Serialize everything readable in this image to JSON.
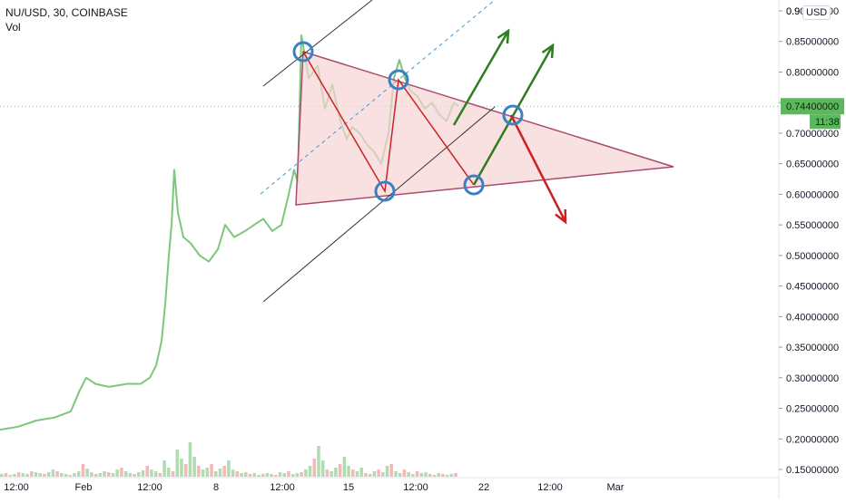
{
  "header": {
    "symbol": "NU/USD, 30, COINBASE",
    "indicator": "Vol",
    "currency": "USD"
  },
  "price_label": {
    "value": "0.74400000",
    "countdown": "11:38",
    "color": "#5cb85c"
  },
  "colors": {
    "price_line": "#7dc67d",
    "triangle_fill": "#f7d4d4",
    "triangle_stroke": "#a94c6e",
    "channel_line": "#333333",
    "dashed_line": "#3a9ad9",
    "zigzag": "#cc2222",
    "arrow_up": "#2e7d1e",
    "arrow_down": "#cc2222",
    "circle": "#3b7fc4",
    "vol_up": "#9fd29f",
    "vol_down": "#f2a5a5"
  },
  "chart_data": {
    "type": "line",
    "ylim": [
      0.14,
      0.92
    ],
    "y_ticks": [
      "0.15000000",
      "0.20000000",
      "0.25000000",
      "0.30000000",
      "0.35000000",
      "0.40000000",
      "0.45000000",
      "0.50000000",
      "0.55000000",
      "0.60000000",
      "0.65000000",
      "0.70000000",
      "0.75000000",
      "0.80000000",
      "0.85000000",
      "0.90000000"
    ],
    "y_tick_values": [
      0.15,
      0.2,
      0.25,
      0.3,
      0.35,
      0.4,
      0.45,
      0.5,
      0.55,
      0.6,
      0.65,
      0.7,
      0.75,
      0.8,
      0.85,
      0.9
    ],
    "y_top_label": "0.9",
    "x_ticks": [
      "12:00",
      "Feb",
      "12:00",
      "8",
      "12:00",
      "15",
      "12:00",
      "22",
      "12:00",
      "Mar"
    ],
    "x_tick_positions": [
      18,
      92,
      165,
      238,
      311,
      384,
      458,
      533,
      606,
      678
    ],
    "series": [
      {
        "values_xy": [
          [
            0,
            0.215
          ],
          [
            20,
            0.22
          ],
          [
            40,
            0.23
          ],
          [
            60,
            0.235
          ],
          [
            78,
            0.245
          ],
          [
            88,
            0.28
          ],
          [
            95,
            0.3
          ],
          [
            105,
            0.29
          ],
          [
            120,
            0.285
          ],
          [
            140,
            0.29
          ],
          [
            155,
            0.29
          ],
          [
            165,
            0.3
          ],
          [
            172,
            0.32
          ],
          [
            178,
            0.36
          ],
          [
            182,
            0.42
          ],
          [
            186,
            0.5
          ],
          [
            189,
            0.55
          ],
          [
            192,
            0.64
          ],
          [
            196,
            0.57
          ],
          [
            202,
            0.53
          ],
          [
            210,
            0.52
          ],
          [
            220,
            0.5
          ],
          [
            230,
            0.49
          ],
          [
            240,
            0.51
          ],
          [
            248,
            0.55
          ],
          [
            258,
            0.53
          ],
          [
            270,
            0.54
          ],
          [
            280,
            0.55
          ],
          [
            290,
            0.56
          ],
          [
            300,
            0.54
          ],
          [
            310,
            0.55
          ],
          [
            318,
            0.6
          ],
          [
            324,
            0.64
          ],
          [
            328,
            0.62
          ],
          [
            332,
            0.86
          ],
          [
            340,
            0.79
          ],
          [
            350,
            0.81
          ],
          [
            358,
            0.74
          ],
          [
            366,
            0.78
          ],
          [
            375,
            0.72
          ],
          [
            382,
            0.69
          ],
          [
            388,
            0.71
          ],
          [
            396,
            0.7
          ],
          [
            405,
            0.68
          ],
          [
            412,
            0.67
          ],
          [
            420,
            0.65
          ],
          [
            428,
            0.7
          ],
          [
            434,
            0.79
          ],
          [
            440,
            0.82
          ],
          [
            446,
            0.79
          ],
          [
            452,
            0.77
          ],
          [
            460,
            0.76
          ],
          [
            468,
            0.74
          ],
          [
            476,
            0.75
          ],
          [
            484,
            0.73
          ],
          [
            492,
            0.72
          ],
          [
            500,
            0.75
          ],
          [
            505,
            0.744
          ]
        ]
      }
    ],
    "volume": {
      "x_start": 0,
      "x_end": 505,
      "heights": [
        3,
        4,
        2,
        3,
        5,
        4,
        3,
        6,
        5,
        4,
        3,
        5,
        8,
        6,
        4,
        3,
        2,
        4,
        6,
        14,
        9,
        5,
        3,
        4,
        6,
        5,
        4,
        8,
        10,
        6,
        4,
        3,
        5,
        7,
        12,
        8,
        6,
        4,
        18,
        10,
        6,
        30,
        20,
        14,
        38,
        22,
        12,
        8,
        10,
        14,
        6,
        9,
        12,
        18,
        8,
        6,
        4,
        5,
        3,
        4,
        2,
        3,
        4,
        3,
        2,
        5,
        4,
        6,
        3,
        4,
        5,
        8,
        12,
        20,
        34,
        18,
        8,
        6,
        10,
        14,
        22,
        12,
        8,
        6,
        10,
        4,
        3,
        6,
        8,
        5,
        12,
        14,
        6,
        4,
        8,
        5,
        3,
        6,
        4,
        5,
        3,
        2,
        4,
        3,
        2,
        3,
        4
      ]
    }
  }
}
